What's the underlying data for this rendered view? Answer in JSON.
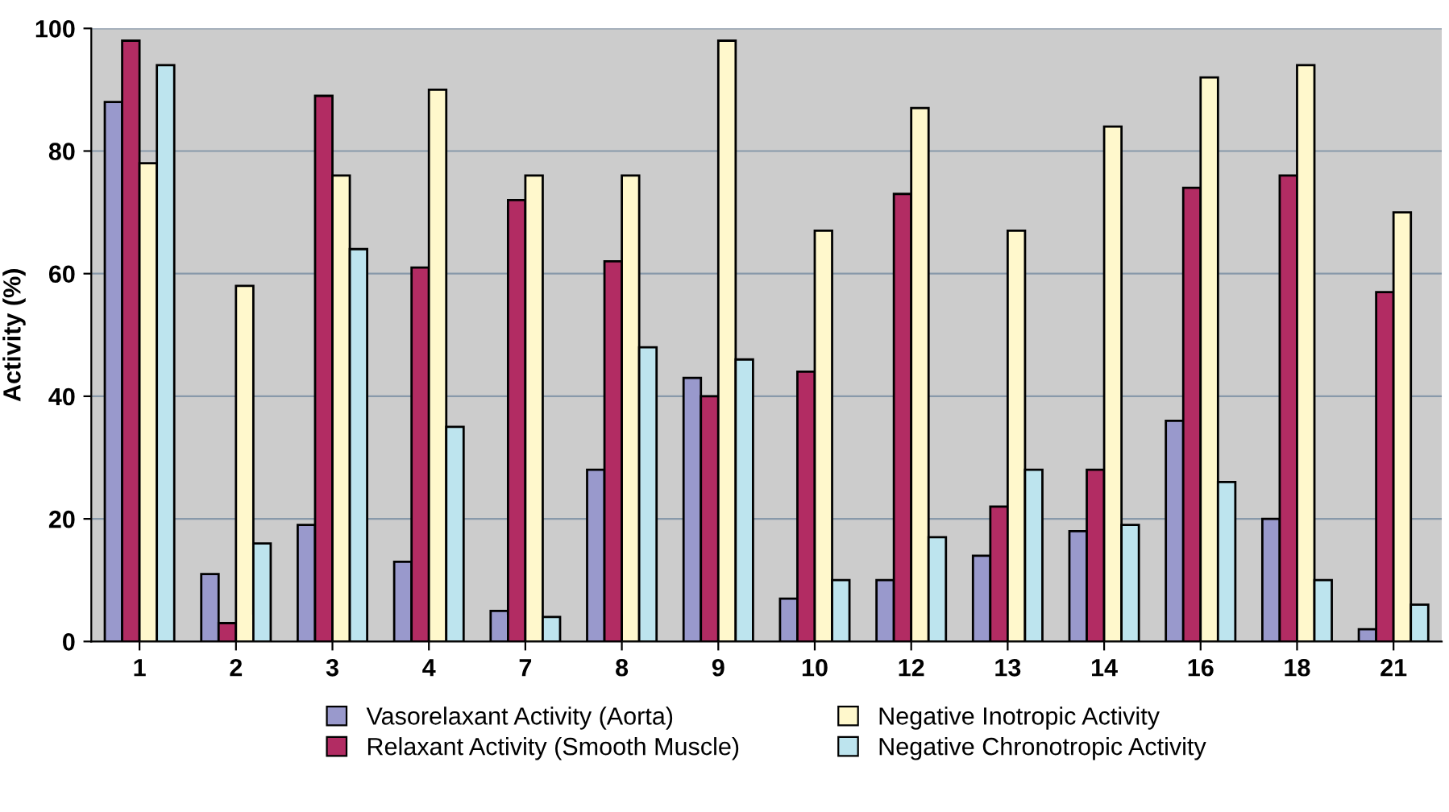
{
  "chart_data": {
    "type": "bar",
    "ylabel": "Activity (%)",
    "categories": [
      "1",
      "2",
      "3",
      "4",
      "7",
      "8",
      "9",
      "10",
      "12",
      "13",
      "14",
      "16",
      "18",
      "21"
    ],
    "series": [
      {
        "name": "Vasorelaxant Activity (Aorta)",
        "color": "#9999cc",
        "values": [
          88,
          11,
          19,
          13,
          5,
          28,
          43,
          7,
          10,
          14,
          18,
          36,
          20,
          2
        ]
      },
      {
        "name": "Relaxant Activity (Smooth Muscle)",
        "color": "#b22c63",
        "values": [
          98,
          3,
          89,
          61,
          72,
          62,
          40,
          44,
          73,
          22,
          28,
          74,
          76,
          57
        ]
      },
      {
        "name": "Negative Inotropic Activity",
        "color": "#fff8cc",
        "values": [
          78,
          58,
          76,
          90,
          76,
          76,
          98,
          67,
          87,
          67,
          84,
          92,
          94,
          70
        ]
      },
      {
        "name": "Negative Chronotropic Activity",
        "color": "#bde4ee",
        "values": [
          94,
          16,
          64,
          35,
          4,
          48,
          46,
          10,
          17,
          28,
          19,
          26,
          10,
          6
        ]
      }
    ],
    "ylim": [
      0,
      100
    ],
    "yticks": [
      0,
      20,
      40,
      60,
      80,
      100
    ],
    "grid": "y",
    "legend": "bottom"
  }
}
